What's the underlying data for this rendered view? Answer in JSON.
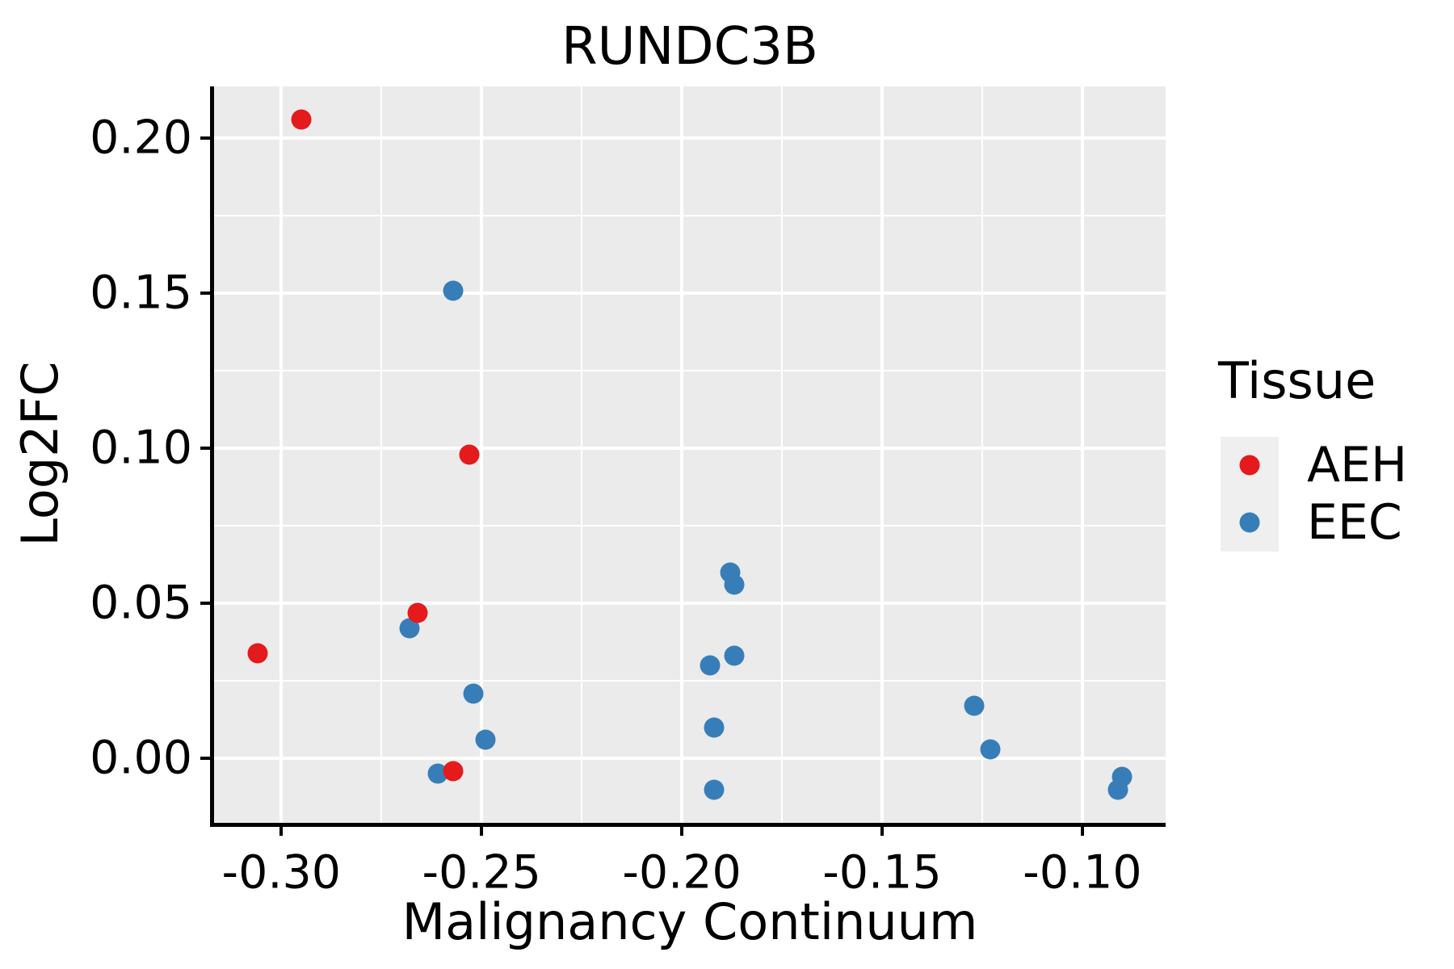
{
  "figure": {
    "background": "#FFFFFF",
    "text_color": "#000000"
  },
  "chart_data": {
    "type": "scatter",
    "title": "RUNDC3B",
    "xlabel": "Malignancy Continuum",
    "ylabel": "Log2FC",
    "panel_bg": "#EBEBEB",
    "spine_color": "#000000",
    "grid": {
      "major_color": "#FFFFFF",
      "minor_color": "#FFFFFF",
      "grid_on": true
    },
    "xlim": [
      -0.3168,
      -0.0792
    ],
    "ylim": [
      -0.0208,
      0.2168
    ],
    "x_ticks": {
      "values": [
        -0.3,
        -0.25,
        -0.2,
        -0.15,
        -0.1
      ],
      "labels": [
        "-0.30",
        "-0.25",
        "-0.20",
        "-0.15",
        "-0.10"
      ]
    },
    "y_ticks": {
      "values": [
        0.0,
        0.05,
        0.1,
        0.15,
        0.2
      ],
      "labels": [
        "0.00",
        "0.05",
        "0.10",
        "0.15",
        "0.20"
      ]
    },
    "x_minor_ticks": [
      -0.275,
      -0.225,
      -0.175,
      -0.125
    ],
    "y_minor_ticks": [
      0.025,
      0.075,
      0.125,
      0.175
    ],
    "legend": {
      "title": "Tissue",
      "position": "right",
      "key_bg": "#EFEFEF",
      "entries": [
        {
          "label": "AEH",
          "color": "#E41A1C"
        },
        {
          "label": "EEC",
          "color": "#377EB8"
        }
      ]
    },
    "series": [
      {
        "name": "EEC",
        "color": "#377EB8",
        "points": [
          [
            -0.257,
            0.151
          ],
          [
            -0.268,
            0.042
          ],
          [
            -0.252,
            0.021
          ],
          [
            -0.249,
            0.006
          ],
          [
            -0.261,
            -0.005
          ],
          [
            -0.188,
            0.06
          ],
          [
            -0.187,
            0.056
          ],
          [
            -0.193,
            0.03
          ],
          [
            -0.187,
            0.033
          ],
          [
            -0.192,
            0.01
          ],
          [
            -0.192,
            -0.01
          ],
          [
            -0.127,
            0.017
          ],
          [
            -0.123,
            0.003
          ],
          [
            -0.09,
            -0.006
          ],
          [
            -0.091,
            -0.01
          ]
        ]
      },
      {
        "name": "AEH",
        "color": "#E41A1C",
        "points": [
          [
            -0.295,
            0.206
          ],
          [
            -0.253,
            0.098
          ],
          [
            -0.266,
            0.047
          ],
          [
            -0.306,
            0.034
          ],
          [
            -0.257,
            -0.004
          ]
        ]
      }
    ]
  }
}
